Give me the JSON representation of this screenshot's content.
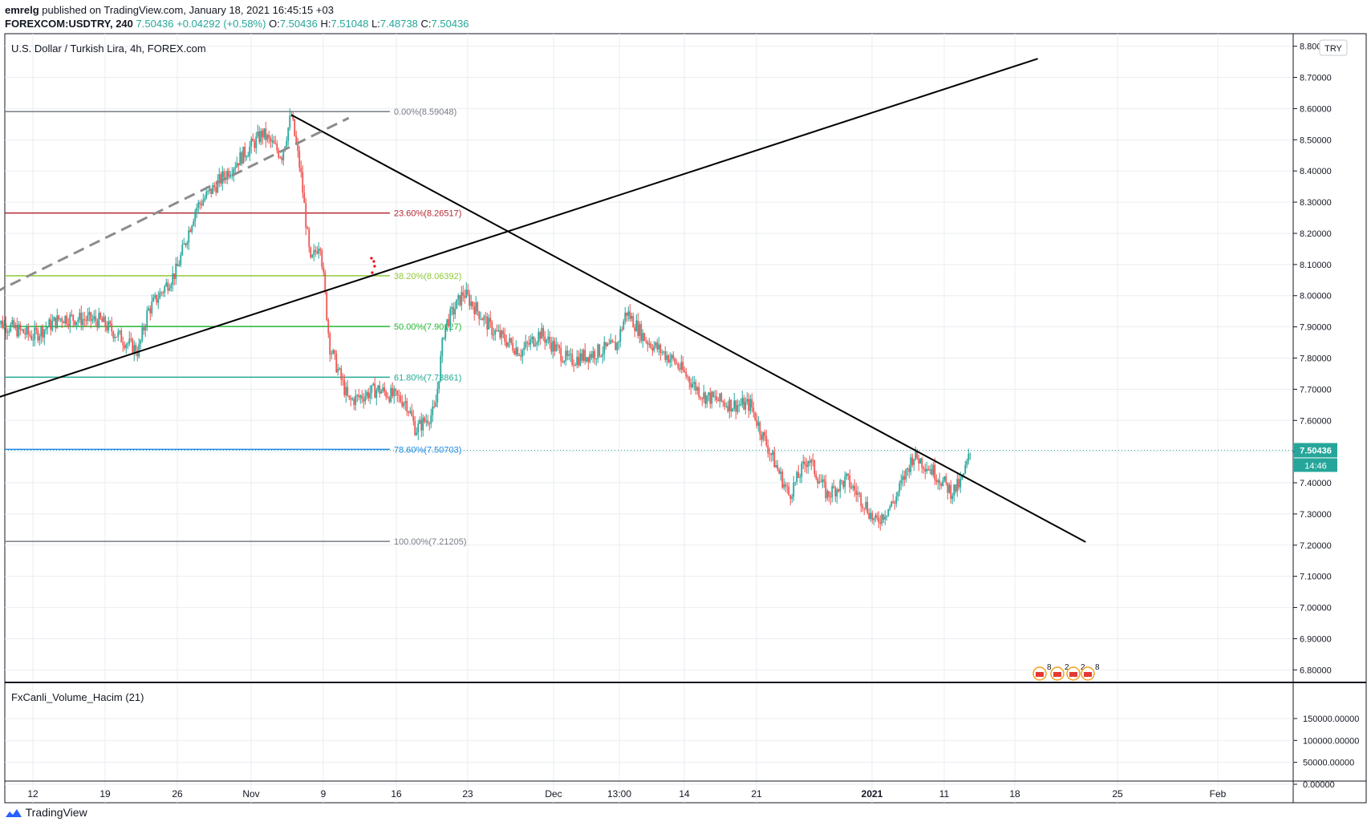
{
  "header": {
    "author": "emrelg",
    "published_text": "published on TradingView.com, January 18, 2021 16:45:15 +03",
    "symbol": "FOREXCOM:USDTRY, 240",
    "last": "7.50436",
    "change": "+0.04292 (+0.58%)",
    "open_label": "O:",
    "open": "7.50436",
    "high_label": "H:",
    "high": "7.51048",
    "low_label": "L:",
    "low": "7.48738",
    "close_label": "C:",
    "close": "7.50436"
  },
  "footer": {
    "brand": "TradingView"
  },
  "colors": {
    "up": "#26a69a",
    "down": "#ef5350",
    "grid": "#e9eef2",
    "axis": "#131722",
    "trendline": "#000000",
    "dashed_line": "#8c8c8c",
    "price_label_bg": "#26a69a"
  },
  "chart_data": [
    {
      "type": "candlestick",
      "title": "U.S. Dollar / Turkish Lira, 4h, FOREX.com",
      "currency_badge": "TRY",
      "y_ticks": [
        "8.80000",
        "8.70000",
        "8.60000",
        "8.50000",
        "8.40000",
        "8.30000",
        "8.20000",
        "8.10000",
        "8.00000",
        "7.90000",
        "7.80000",
        "7.70000",
        "7.60000",
        "7.50000",
        "7.40000",
        "7.30000",
        "7.20000",
        "7.10000",
        "7.00000",
        "6.90000",
        "6.80000"
      ],
      "ylim": [
        6.77,
        8.83
      ],
      "x_ticks": [
        {
          "label": "12",
          "bold": false
        },
        {
          "label": "19",
          "bold": false
        },
        {
          "label": "26",
          "bold": false
        },
        {
          "label": "Nov",
          "bold": false
        },
        {
          "label": "9",
          "bold": false
        },
        {
          "label": "16",
          "bold": false
        },
        {
          "label": "23",
          "bold": false
        },
        {
          "label": "Dec",
          "bold": false
        },
        {
          "label": "13:00",
          "bold": false
        },
        {
          "label": "14",
          "bold": false
        },
        {
          "label": "21",
          "bold": false
        },
        {
          "label": "2021",
          "bold": true
        },
        {
          "label": "11",
          "bold": false
        },
        {
          "label": "18",
          "bold": false
        },
        {
          "label": "25",
          "bold": false
        },
        {
          "label": "Feb",
          "bold": false
        }
      ],
      "price_path": [
        {
          "x": "Oct 8",
          "price": 7.92
        },
        {
          "x": "Oct 12",
          "price": 7.87
        },
        {
          "x": "Oct 15",
          "price": 7.93
        },
        {
          "x": "Oct 19",
          "price": 7.92
        },
        {
          "x": "Oct 23",
          "price": 7.82
        },
        {
          "x": "Oct 24",
          "price": 7.95
        },
        {
          "x": "Oct 27",
          "price": 8.08
        },
        {
          "x": "Oct 29",
          "price": 8.28
        },
        {
          "x": "Nov 2",
          "price": 8.42
        },
        {
          "x": "Nov 5",
          "price": 8.52
        },
        {
          "x": "Nov 7",
          "price": 8.45
        },
        {
          "x": "Nov 8",
          "price": 8.58
        },
        {
          "x": "Nov 9",
          "price": 8.39
        },
        {
          "x": "Nov 10",
          "price": 8.1
        },
        {
          "x": "Nov 11",
          "price": 8.18
        },
        {
          "x": "Nov 12",
          "price": 7.84
        },
        {
          "x": "Nov 14",
          "price": 7.66
        },
        {
          "x": "Nov 17",
          "price": 7.7
        },
        {
          "x": "Nov 20",
          "price": 7.66
        },
        {
          "x": "Nov 21",
          "price": 7.57
        },
        {
          "x": "Nov 23",
          "price": 7.63
        },
        {
          "x": "Nov 24",
          "price": 7.9
        },
        {
          "x": "Nov 26",
          "price": 8.01
        },
        {
          "x": "Nov 29",
          "price": 7.89
        },
        {
          "x": "Dec 2",
          "price": 7.82
        },
        {
          "x": "Dec 4",
          "price": 7.88
        },
        {
          "x": "Dec 7",
          "price": 7.79
        },
        {
          "x": "Dec 10",
          "price": 7.82
        },
        {
          "x": "Dec 12",
          "price": 7.84
        },
        {
          "x": "Dec 13",
          "price": 7.95
        },
        {
          "x": "Dec 15",
          "price": 7.86
        },
        {
          "x": "Dec 18",
          "price": 7.79
        },
        {
          "x": "Dec 21",
          "price": 7.68
        },
        {
          "x": "Dec 24",
          "price": 7.65
        },
        {
          "x": "Dec 26",
          "price": 7.65
        },
        {
          "x": "Dec 27",
          "price": 7.57
        },
        {
          "x": "Dec 29",
          "price": 7.43
        },
        {
          "x": "Dec 30",
          "price": 7.36
        },
        {
          "x": "Jan 1",
          "price": 7.48
        },
        {
          "x": "Jan 3",
          "price": 7.36
        },
        {
          "x": "Jan 5",
          "price": 7.41
        },
        {
          "x": "Jan 7",
          "price": 7.33
        },
        {
          "x": "Jan 8",
          "price": 7.27
        },
        {
          "x": "Jan 10",
          "price": 7.34
        },
        {
          "x": "Jan 12",
          "price": 7.49
        },
        {
          "x": "Jan 14",
          "price": 7.44
        },
        {
          "x": "Jan 16",
          "price": 7.37
        },
        {
          "x": "Jan 17",
          "price": 7.4
        },
        {
          "x": "Jan 18",
          "price": 7.5
        }
      ],
      "last_price": {
        "value": "7.50436",
        "countdown": "14:46"
      },
      "fibonacci": [
        {
          "label": "0.00%(8.59048)",
          "price": 8.59048,
          "color": "#787b86"
        },
        {
          "label": "23.60%(8.26517)",
          "price": 8.26517,
          "color": "#b22833"
        },
        {
          "label": "38.20%(8.06392)",
          "price": 8.06392,
          "color": "#8fc93a"
        },
        {
          "label": "50.00%(7.90127)",
          "price": 7.90127,
          "color": "#27b733"
        },
        {
          "label": "61.80%(7.73861)",
          "price": 7.73861,
          "color": "#22ab94"
        },
        {
          "label": "78.60%(7.50703)",
          "price": 7.50703,
          "color": "#1e88e5"
        },
        {
          "label": "100.00%(7.21205)",
          "price": 7.21205,
          "color": "#787b86"
        }
      ],
      "trendlines": [
        {
          "name": "rising support",
          "from": {
            "x": "Oct 8",
            "price": 7.67
          },
          "to": {
            "x": "Jan 25",
            "price": 8.76
          },
          "style": "solid"
        },
        {
          "name": "falling resistance",
          "from": {
            "x": "Nov 8",
            "price": 8.58
          },
          "to": {
            "x": "Jan 30",
            "price": 7.21
          },
          "style": "solid"
        },
        {
          "name": "upper channel",
          "from": {
            "x": "Oct 8",
            "price": 8.01
          },
          "to": {
            "x": "Nov 14",
            "price": 8.57
          },
          "style": "dashed"
        }
      ],
      "events": {
        "counts": [
          "8",
          "2",
          "2",
          "8"
        ]
      }
    },
    {
      "type": "bar",
      "title": "FxCanli_Volume_Hacim (21)",
      "y_ticks": [
        "150000.00000",
        "100000.00000",
        "50000.00000",
        "0.00000"
      ],
      "ylim": [
        -4000,
        160000
      ],
      "values": []
    }
  ]
}
